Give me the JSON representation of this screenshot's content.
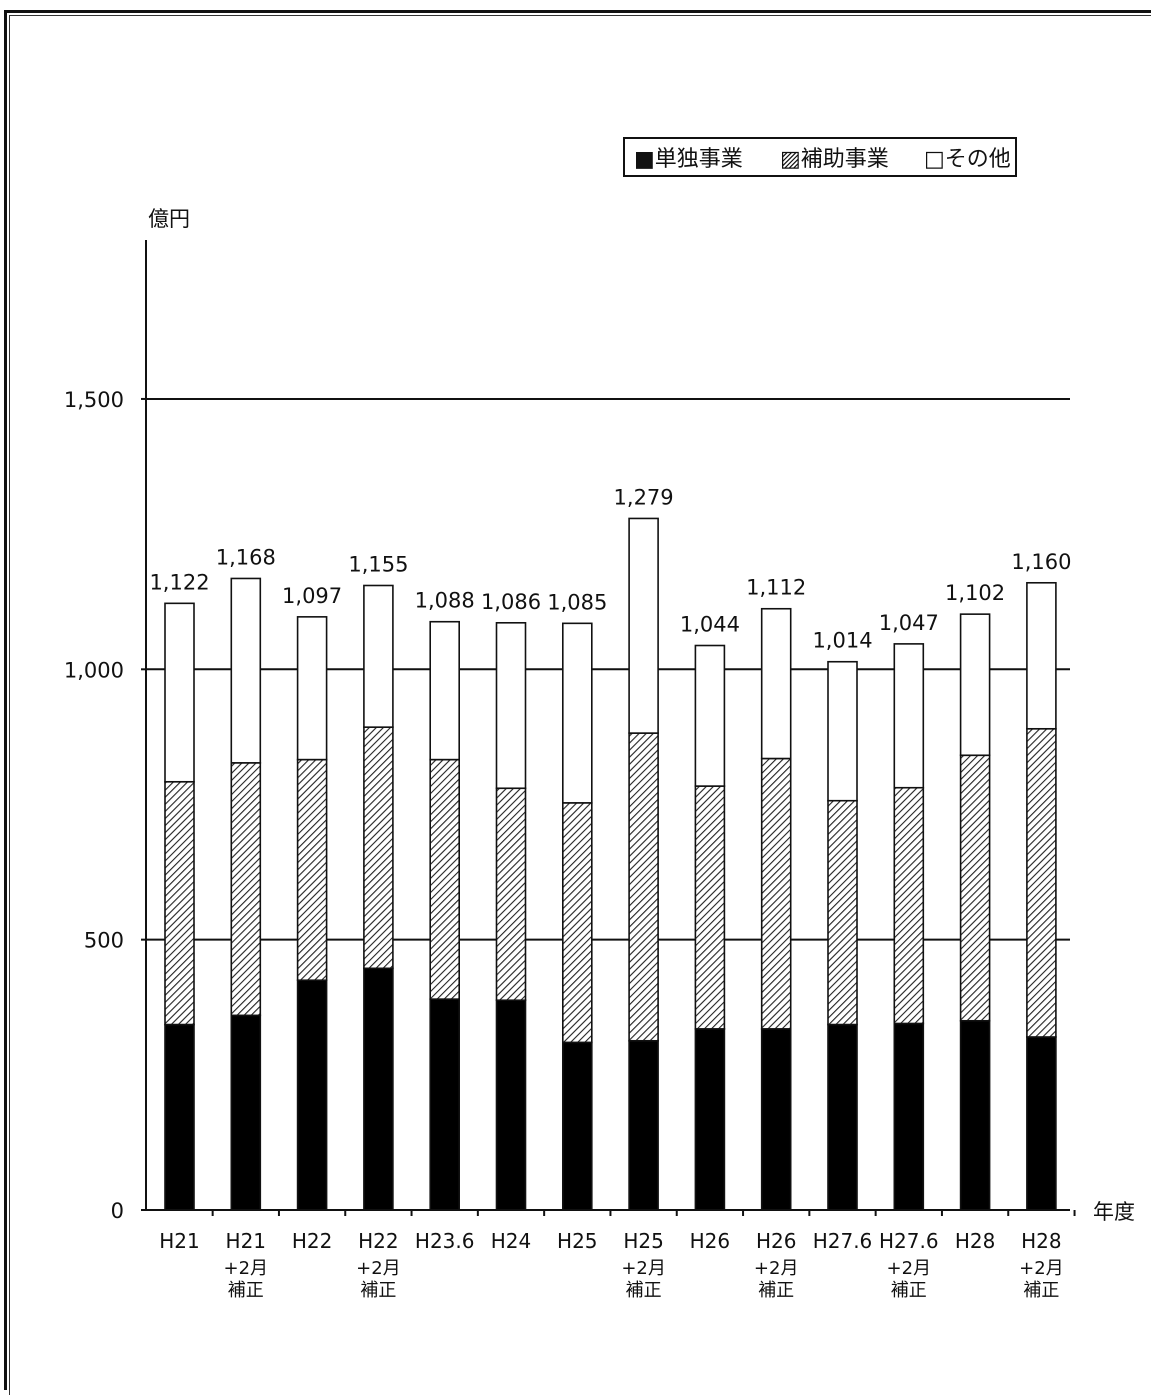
{
  "chart_data": {
    "type": "bar",
    "stacked": true,
    "ylabel": "億円",
    "xlabel": "年度",
    "ylim": [
      0,
      1800
    ],
    "yticks": [
      0,
      500,
      1000,
      1500
    ],
    "ytick_labels": [
      "0",
      "500",
      "1,000",
      "1,500"
    ],
    "grid": "horizontal at 500, 1000, 1500",
    "legend_position": "top-right",
    "categories": [
      [
        "H21",
        ""
      ],
      [
        "H21",
        "+2月",
        "補正"
      ],
      [
        "H22",
        ""
      ],
      [
        "H22",
        "+2月",
        "補正"
      ],
      [
        "H23.6",
        ""
      ],
      [
        "H24",
        ""
      ],
      [
        "H25",
        ""
      ],
      [
        "H25",
        "+2月",
        "補正"
      ],
      [
        "H26",
        ""
      ],
      [
        "H26",
        "+2月",
        "補正"
      ],
      [
        "H27.6",
        ""
      ],
      [
        "H27.6",
        "+2月",
        "補正"
      ],
      [
        "H28",
        ""
      ],
      [
        "H28",
        "+2月",
        "補正"
      ]
    ],
    "series": [
      {
        "name": "単独事業",
        "legend_label": "■単独事業",
        "color": "#000000",
        "fill": "solid",
        "values": [
          343,
          360,
          425,
          447,
          390,
          388,
          310,
          313,
          335,
          335,
          343,
          345,
          350,
          320
        ]
      },
      {
        "name": "補助事業",
        "legend_label": "▨補助事業",
        "color": "#555555",
        "fill": "hatched",
        "values": [
          449,
          467,
          408,
          446,
          443,
          392,
          443,
          569,
          449,
          500,
          414,
          436,
          491,
          570
        ]
      },
      {
        "name": "その他",
        "legend_label": "□その他",
        "color": "#ffffff",
        "fill": "white",
        "values": [
          330,
          341,
          264,
          262,
          255,
          306,
          332,
          397,
          260,
          277,
          257,
          266,
          261,
          270
        ]
      }
    ],
    "totals": [
      1122,
      1168,
      1097,
      1155,
      1088,
      1086,
      1085,
      1279,
      1044,
      1112,
      1014,
      1047,
      1102,
      1160
    ],
    "total_labels": [
      "1,122",
      "1,168",
      "1,097",
      "1,155",
      "1,088",
      "1,086",
      "1,085",
      "1,279",
      "1,044",
      "1,112",
      "1,014",
      "1,047",
      "1,102",
      "1,160"
    ]
  }
}
